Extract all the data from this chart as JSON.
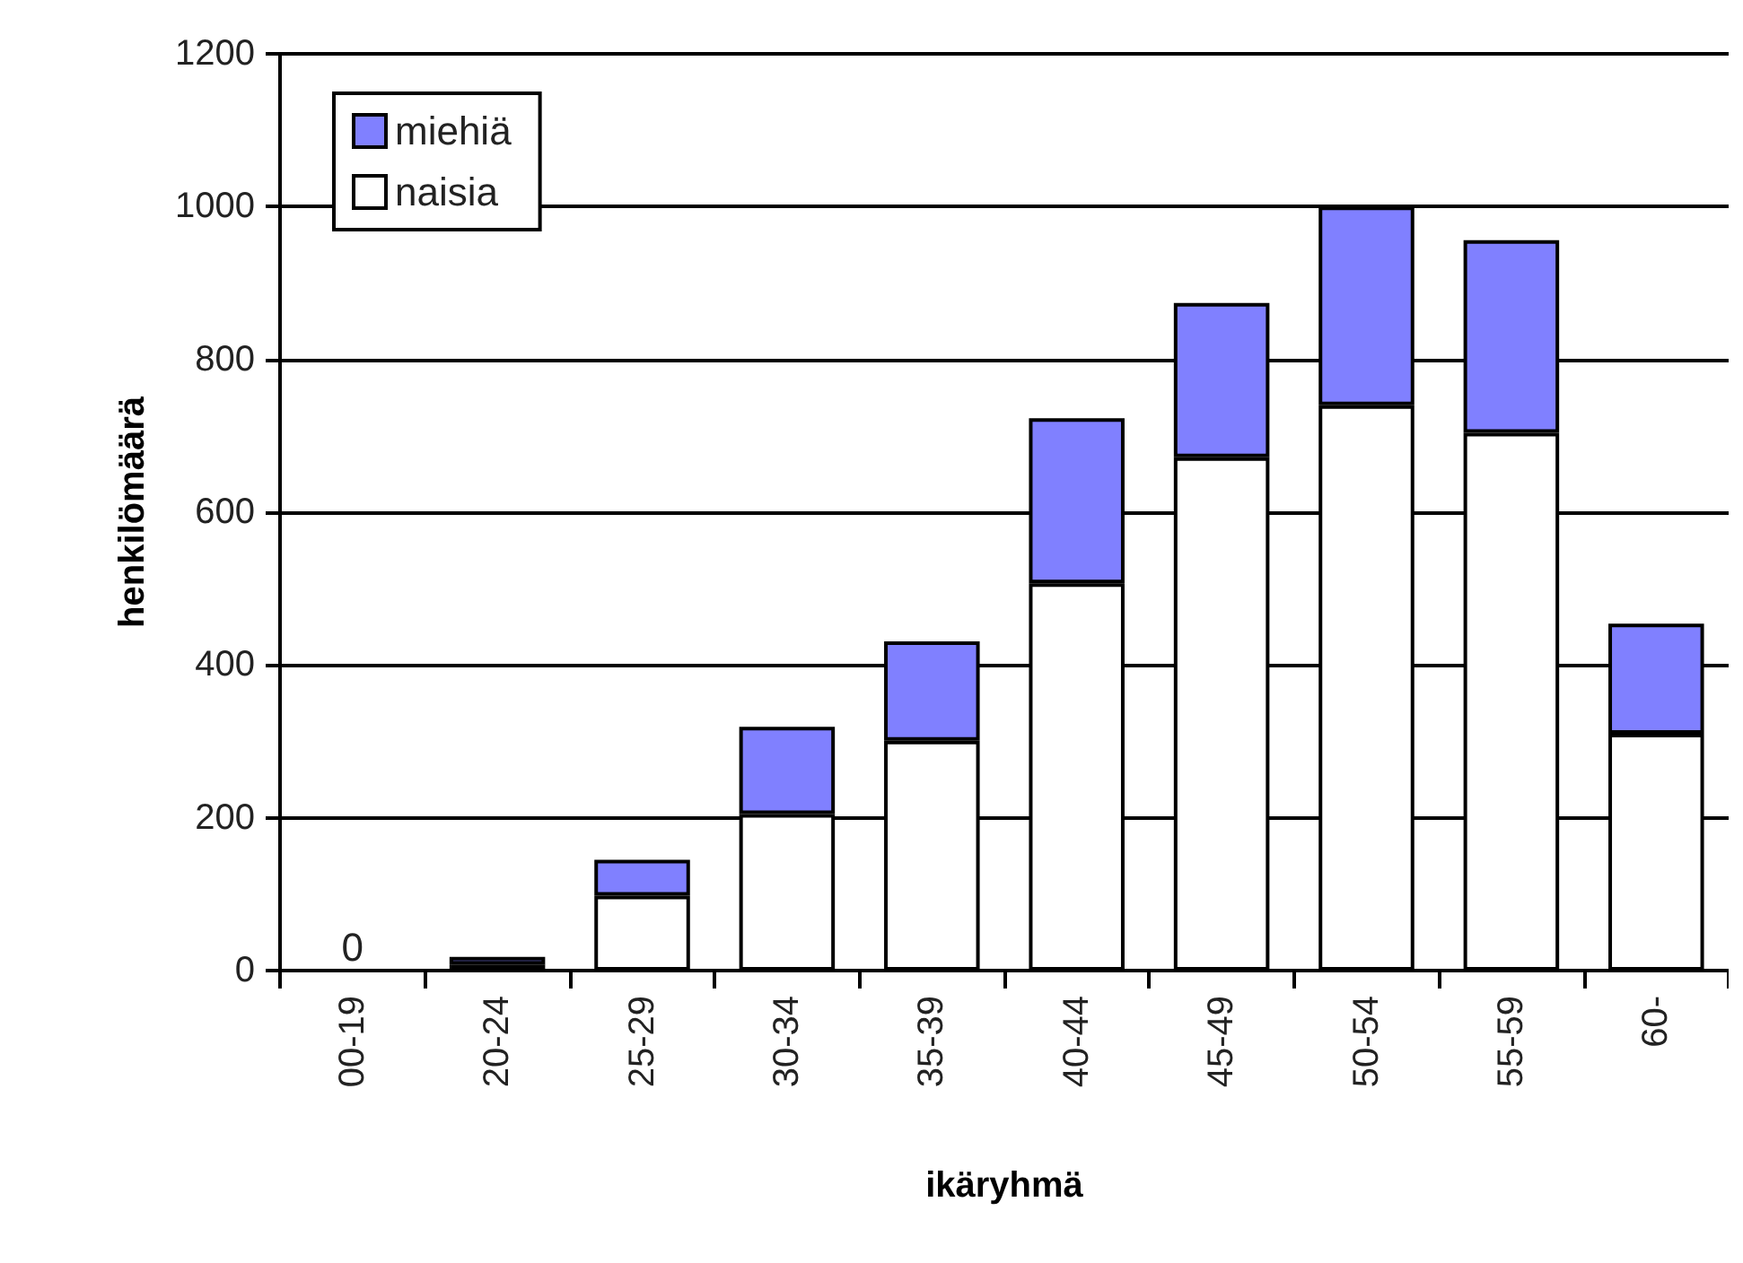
{
  "chart_data": {
    "type": "bar",
    "stacked": true,
    "xlabel": "ikäryhmä",
    "ylabel": "henkilömäärä",
    "categories": [
      "00-19",
      "20-24",
      "25-29",
      "30-34",
      "35-39",
      "40-44",
      "45-49",
      "50-54",
      "55-59",
      "60-"
    ],
    "series": [
      {
        "name": "naisia",
        "color": "#ffffff",
        "values": [
          0,
          8,
          98,
          205,
          301,
          507,
          672,
          740,
          704,
          310
        ],
        "value_labels": [
          "0",
          null,
          null,
          null,
          null,
          null,
          null,
          null,
          null,
          null
        ]
      },
      {
        "name": "miehiä",
        "color": "#8080ff",
        "values": [
          0,
          10,
          47,
          114,
          130,
          216,
          202,
          260,
          252,
          144
        ]
      }
    ],
    "ylim": [
      0,
      1200
    ],
    "yticks": [
      0,
      200,
      400,
      600,
      800,
      1000,
      1200
    ],
    "grid": "y",
    "legend": "top left"
  }
}
